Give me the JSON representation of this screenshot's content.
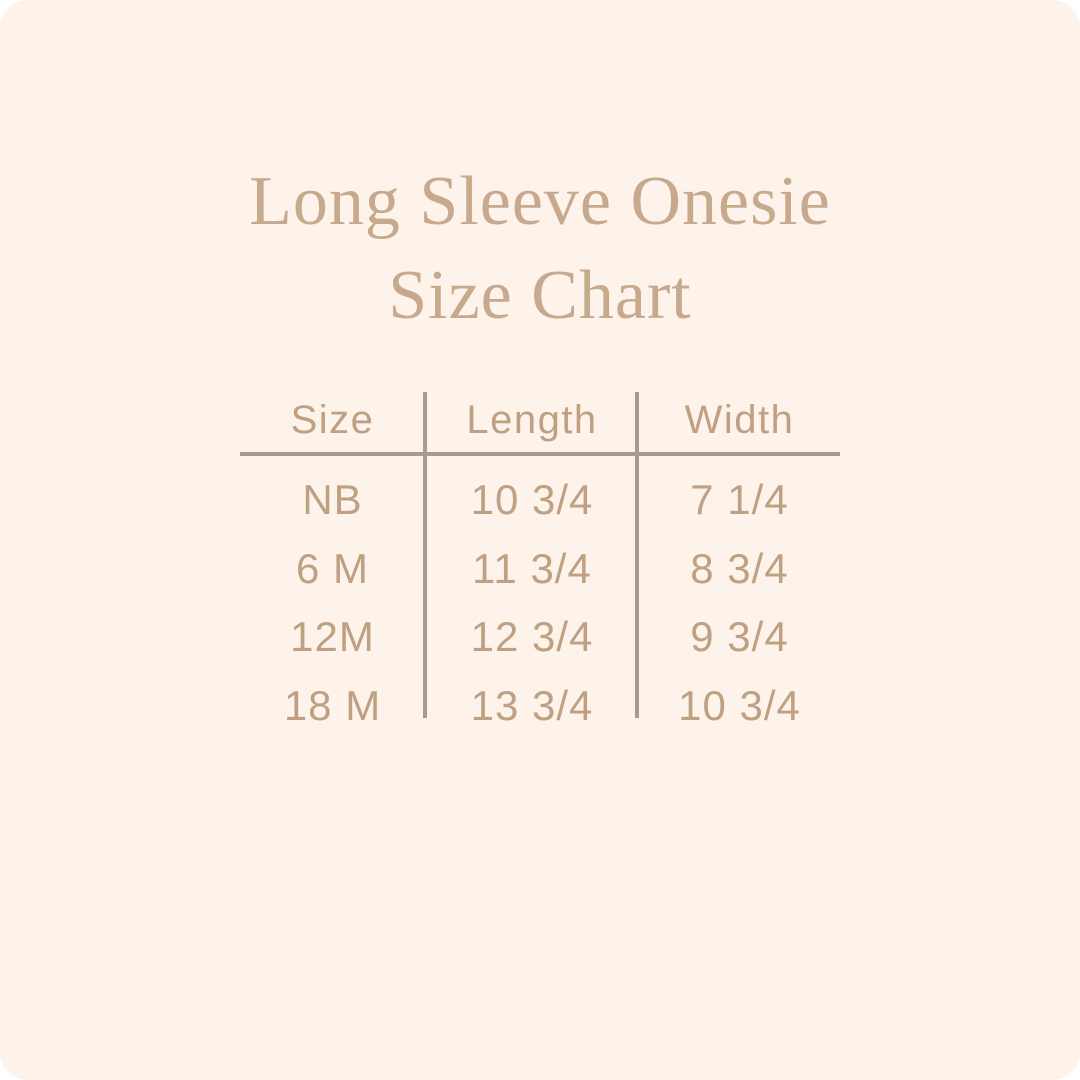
{
  "title": {
    "line1": "Long Sleeve Onesie",
    "line2": "Size Chart"
  },
  "table": {
    "columns": [
      "Size",
      "Length",
      "Width"
    ],
    "rows": [
      [
        "NB",
        "10 3/4",
        "7 1/4"
      ],
      [
        "6 M",
        "11 3/4",
        "8 3/4"
      ],
      [
        "12M",
        "12 3/4",
        "9 3/4"
      ],
      [
        "18 M",
        "13 3/4",
        "10 3/4"
      ]
    ]
  },
  "colors": {
    "background": "#fdf3ea",
    "title_text": "#c7a98d",
    "table_text": "#bfa083",
    "divider_line": "#a99b8c"
  },
  "chart_data": {
    "type": "table",
    "title": "Long Sleeve Onesie Size Chart",
    "columns": [
      "Size",
      "Length",
      "Width"
    ],
    "rows": [
      {
        "size": "NB",
        "length": "10 3/4",
        "width": "7 1/4"
      },
      {
        "size": "6 M",
        "length": "11 3/4",
        "width": "8 3/4"
      },
      {
        "size": "12M",
        "length": "12 3/4",
        "width": "9 3/4"
      },
      {
        "size": "18 M",
        "length": "13 3/4",
        "width": "10 3/4"
      }
    ]
  }
}
